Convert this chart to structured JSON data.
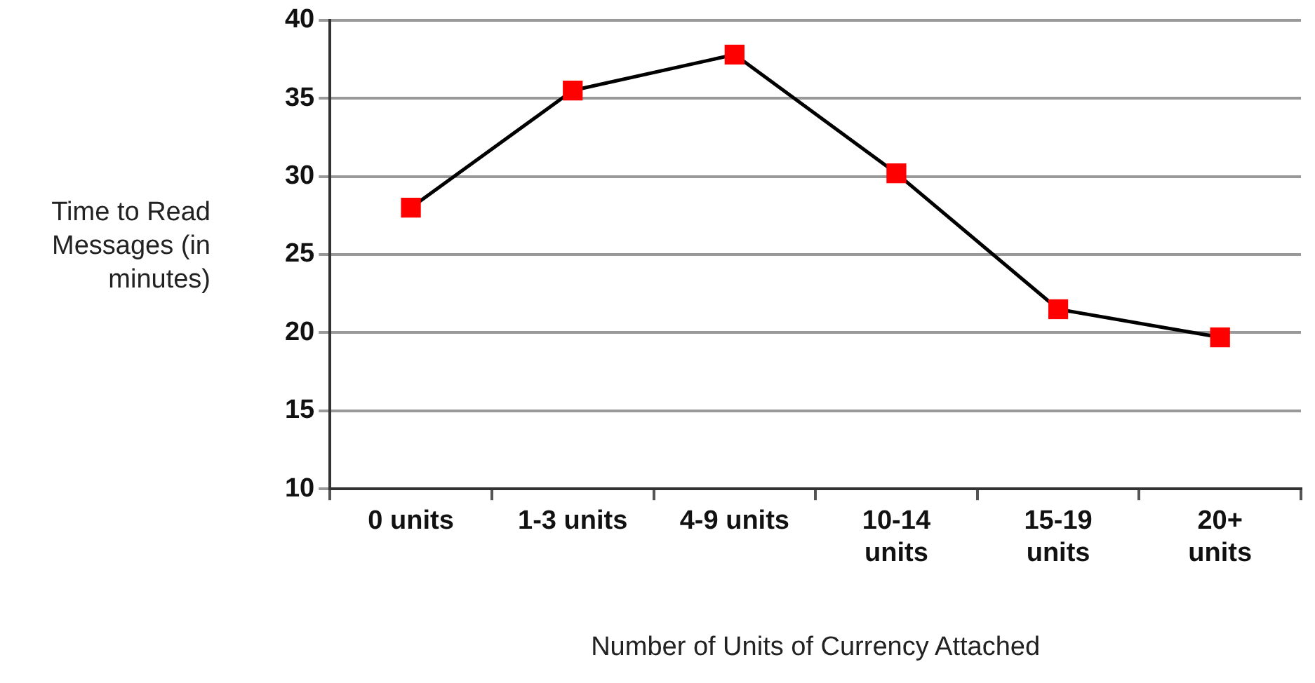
{
  "chart_data": {
    "type": "line",
    "xlabel": "Number of Units of Currency Attached",
    "ylabel": "Time to Read Messages (in minutes)",
    "categories": [
      "0 units",
      "1-3 units",
      "4-9 units",
      "10-14 units",
      "15-19 units",
      "20+ units"
    ],
    "series": [
      {
        "color": "#000000",
        "values": [
          28,
          35.5,
          37.8,
          30.2,
          21.5,
          19.7
        ]
      }
    ],
    "marker": "square",
    "line_style": "solid",
    "ylim": [
      10,
      40
    ],
    "yticks": [
      10,
      15,
      20,
      25,
      30,
      35,
      40
    ],
    "grid": "y",
    "legend": false
  }
}
